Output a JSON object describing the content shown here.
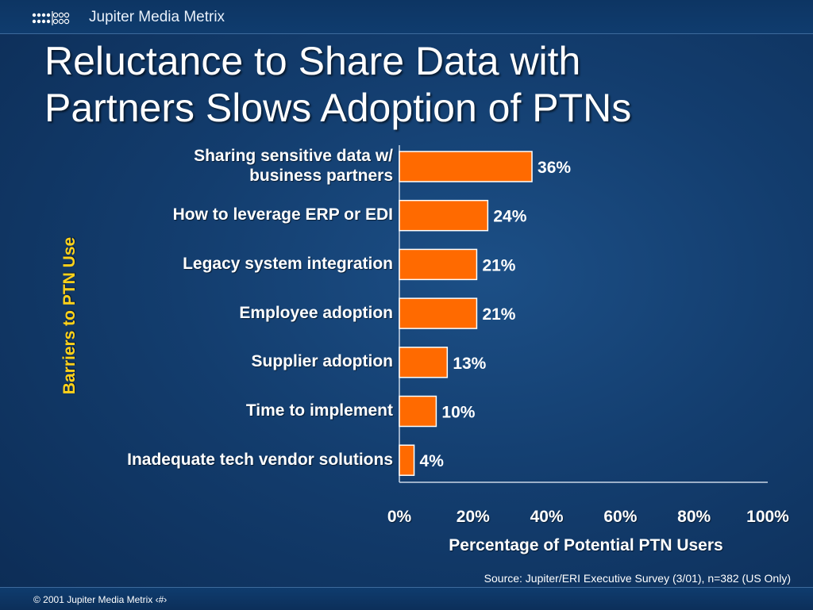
{
  "header": {
    "brand": "Jupiter Media Metrix"
  },
  "slide": {
    "title_line1": "Reluctance to Share Data with",
    "title_line2": "Partners Slows Adoption of PTNs"
  },
  "chart_data": {
    "type": "bar",
    "orientation": "horizontal",
    "categories": [
      "Sharing sensitive data w/ business partners",
      "How to leverage ERP or EDI",
      "Legacy system integration",
      "Employee adoption",
      "Supplier adoption",
      "Time to implement",
      "Inadequate tech vendor solutions"
    ],
    "category_lines": [
      [
        "Sharing sensitive data w/",
        "business partners"
      ],
      [
        "How to leverage ERP or EDI"
      ],
      [
        "Legacy system integration"
      ],
      [
        "Employee adoption"
      ],
      [
        "Supplier adoption"
      ],
      [
        "Time to implement"
      ],
      [
        "Inadequate tech vendor solutions"
      ]
    ],
    "values": [
      36,
      24,
      21,
      21,
      13,
      10,
      4
    ],
    "data_labels": [
      "36%",
      "24%",
      "21%",
      "21%",
      "13%",
      "10%",
      "4%"
    ],
    "xlim": [
      0,
      100
    ],
    "xticks": [
      "0%",
      "20%",
      "40%",
      "60%",
      "80%",
      "100%"
    ],
    "xlabel": "Percentage of Potential PTN Users",
    "ylabel": "Barriers to PTN Use",
    "bar_color": "#ff6a00",
    "grid": false
  },
  "source": "Source: Jupiter/ERI Executive Survey (3/01), n=382 (US Only)",
  "footer": {
    "copyright": "© 2001 Jupiter Media Metrix  ‹#›"
  }
}
